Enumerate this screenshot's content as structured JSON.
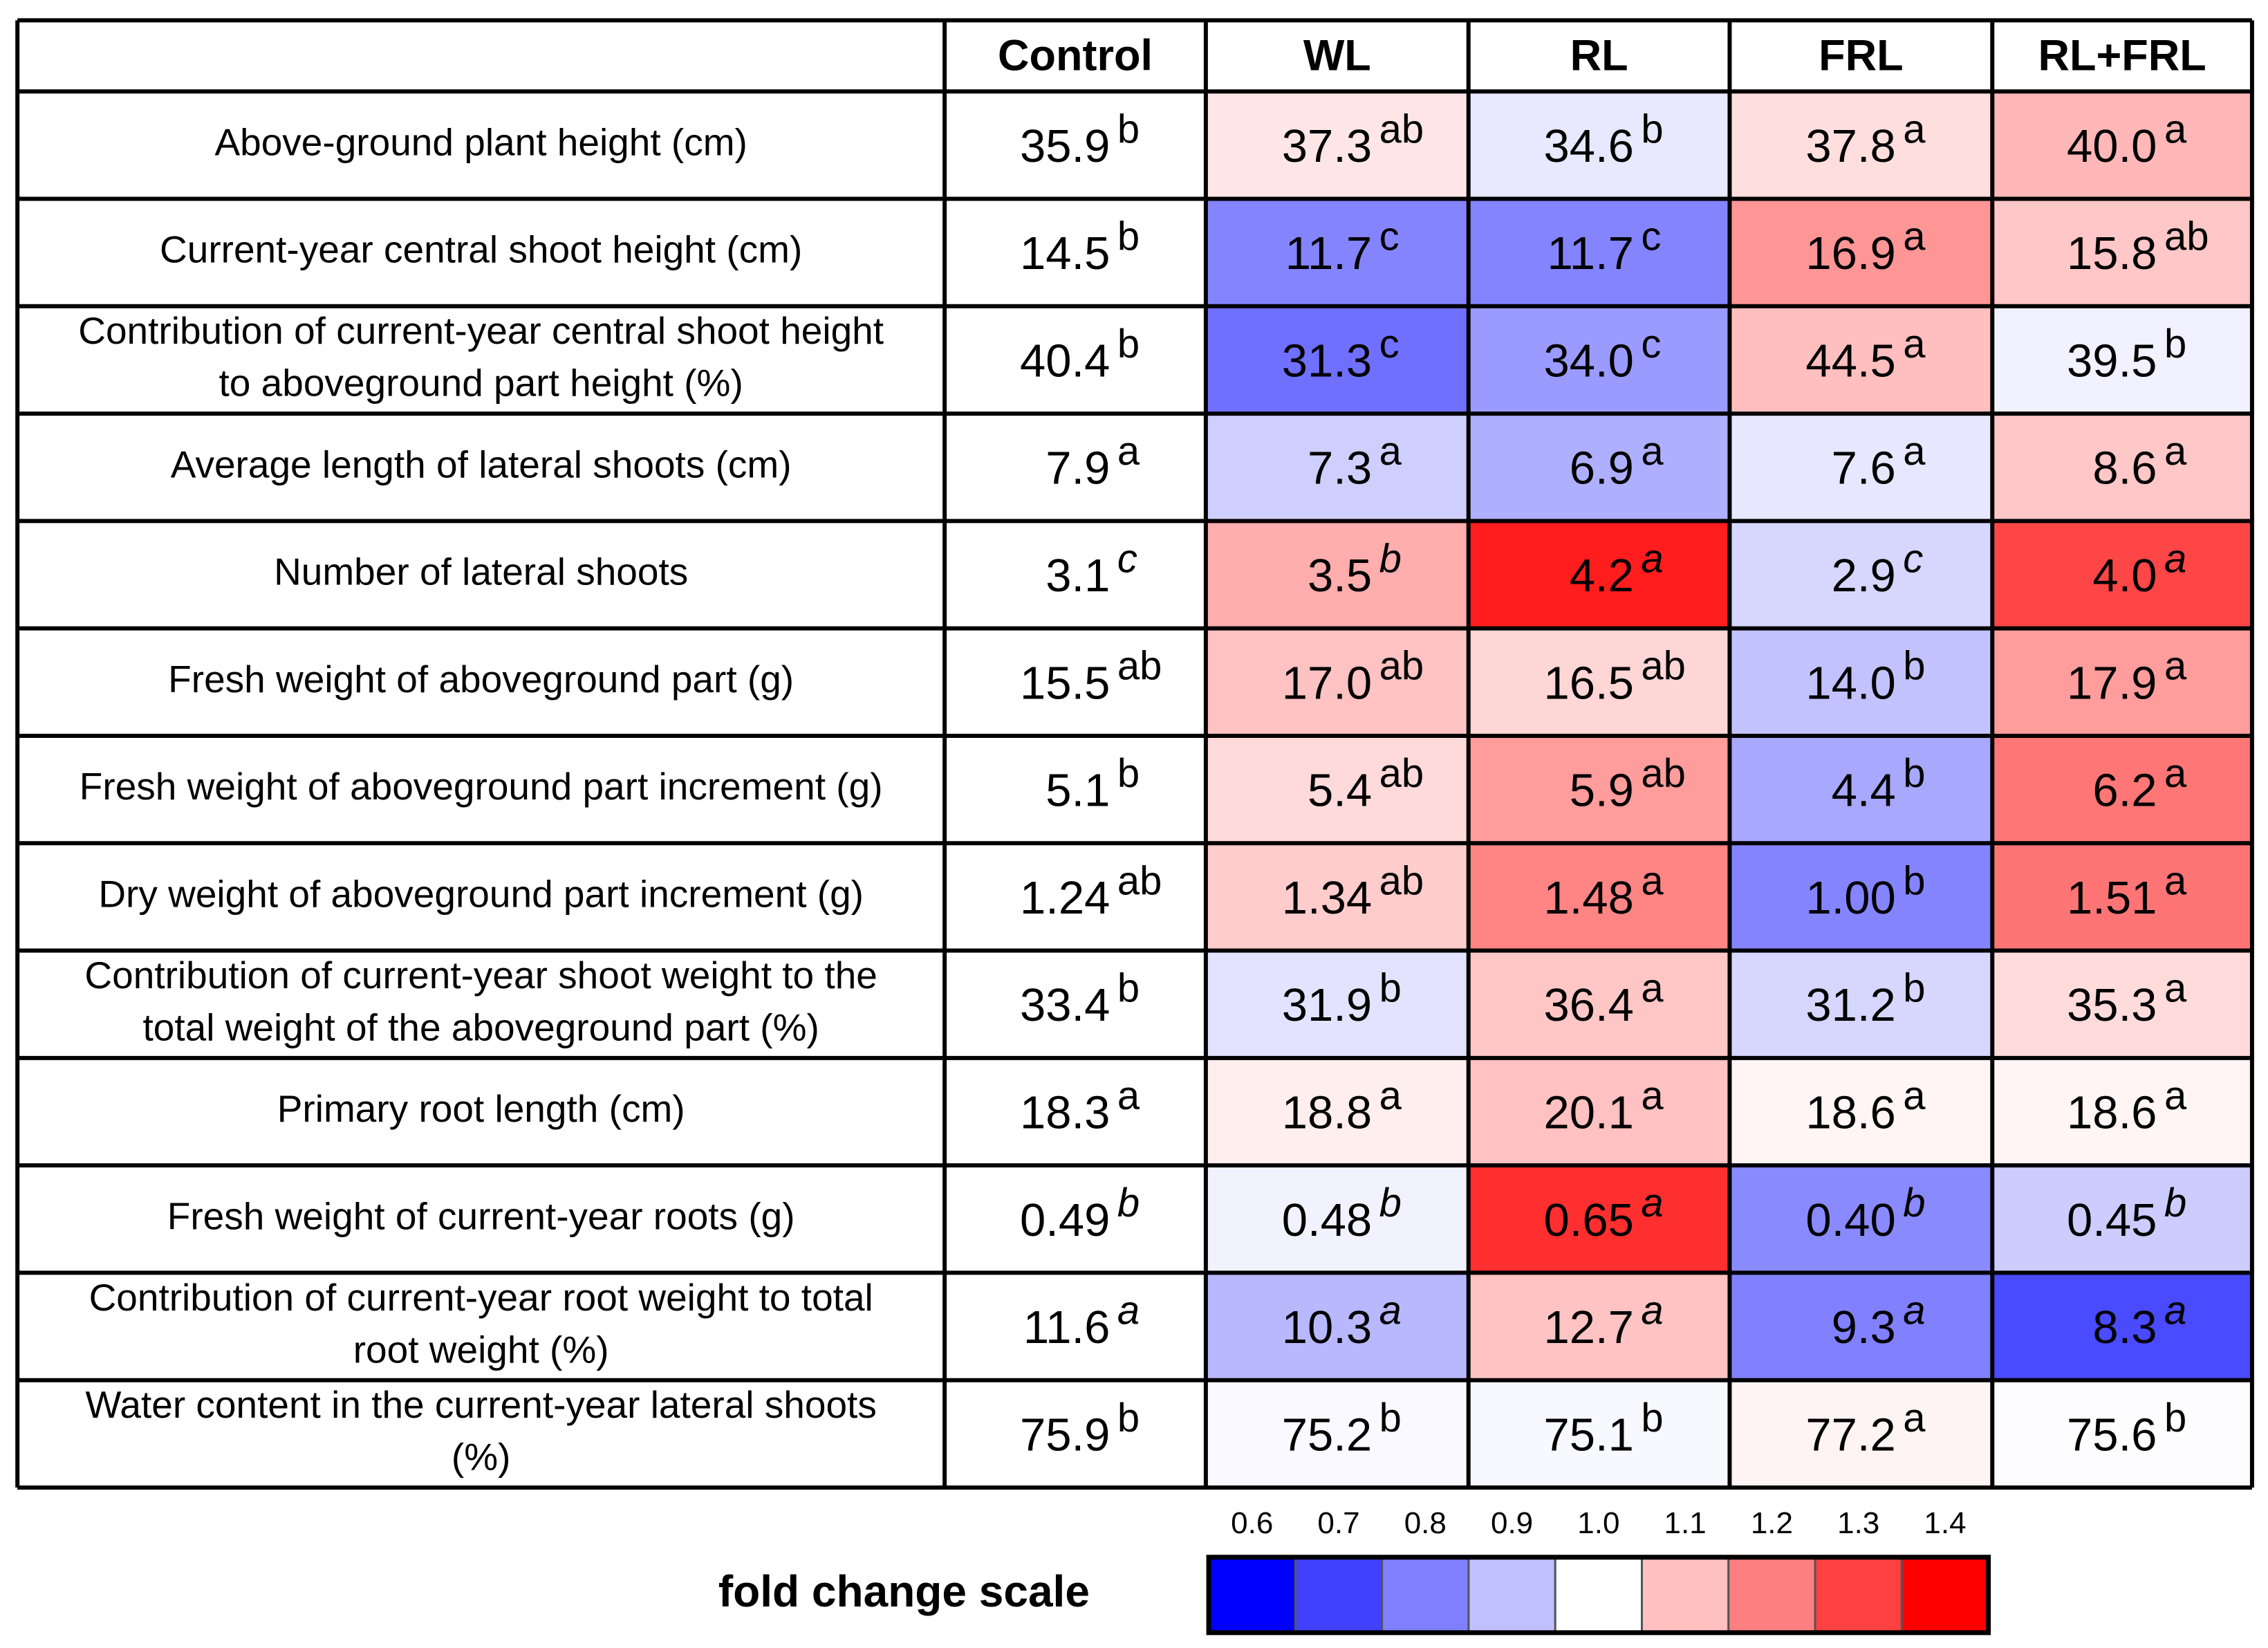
{
  "table": {
    "columns": [
      "Control",
      "WL",
      "RL",
      "FRL",
      "RL+FRL"
    ],
    "rows": [
      {
        "label": [
          "Above-ground plant height (cm)"
        ],
        "values": [
          "35.9",
          "37.3",
          "34.6",
          "37.8",
          "40.0"
        ],
        "letters": [
          "b",
          "ab",
          "b",
          "a",
          "a"
        ],
        "letter_style": "normal"
      },
      {
        "label": [
          "Current-year central shoot height (cm)"
        ],
        "values": [
          "14.5",
          "11.7",
          "11.7",
          "16.9",
          "15.8"
        ],
        "letters": [
          "b",
          "c",
          "c",
          "a",
          "ab"
        ],
        "letter_style": "normal"
      },
      {
        "label": [
          "Contribution of current-year central shoot height",
          "to aboveground part height (%)"
        ],
        "values": [
          "40.4",
          "31.3",
          "34.0",
          "44.5",
          "39.5"
        ],
        "letters": [
          "b",
          "c",
          "c",
          "a",
          "b"
        ],
        "letter_style": "normal"
      },
      {
        "label": [
          "Average length of lateral shoots (cm)"
        ],
        "values": [
          "7.9",
          "7.3",
          "6.9",
          "7.6",
          "8.6"
        ],
        "letters": [
          "a",
          "a",
          "a",
          "a",
          "a"
        ],
        "letter_style": "normal"
      },
      {
        "label": [
          "Number of lateral shoots"
        ],
        "values": [
          "3.1",
          "3.5",
          "4.2",
          "2.9",
          "4.0"
        ],
        "letters": [
          "c",
          "b",
          "a",
          "c",
          "a"
        ],
        "letter_style": "italic"
      },
      {
        "label": [
          "Fresh weight of aboveground part (g)"
        ],
        "values": [
          "15.5",
          "17.0",
          "16.5",
          "14.0",
          "17.9"
        ],
        "letters": [
          "ab",
          "ab",
          "ab",
          "b",
          "a"
        ],
        "letter_style": "normal"
      },
      {
        "label": [
          "Fresh weight of aboveground part increment (g)"
        ],
        "values": [
          "5.1",
          "5.4",
          "5.9",
          "4.4",
          "6.2"
        ],
        "letters": [
          "b",
          "ab",
          "ab",
          "b",
          "a"
        ],
        "letter_style": "normal"
      },
      {
        "label": [
          "Dry weight of aboveground part increment (g)"
        ],
        "values": [
          "1.24",
          "1.34",
          "1.48",
          "1.00",
          "1.51"
        ],
        "letters": [
          "ab",
          "ab",
          "a",
          "b",
          "a"
        ],
        "letter_style": "normal"
      },
      {
        "label": [
          "Contribution of current-year shoot weight to the",
          "total weight of the aboveground part (%)"
        ],
        "values": [
          "33.4",
          "31.9",
          "36.4",
          "31.2",
          "35.3"
        ],
        "letters": [
          "b",
          "b",
          "a",
          "b",
          "a"
        ],
        "letter_style": "normal"
      },
      {
        "label": [
          "Primary root length (cm)"
        ],
        "values": [
          "18.3",
          "18.8",
          "20.1",
          "18.6",
          "18.6"
        ],
        "letters": [
          "a",
          "a",
          "a",
          "a",
          "a"
        ],
        "letter_style": "normal"
      },
      {
        "label": [
          "Fresh weight of current-year roots (g)"
        ],
        "values": [
          "0.49",
          "0.48",
          "0.65",
          "0.40",
          "0.45"
        ],
        "letters": [
          "b",
          "b",
          "a",
          "b",
          "b"
        ],
        "letter_style": "italic"
      },
      {
        "label": [
          "Contribution of current-year root weight to total",
          "root weight (%)"
        ],
        "values": [
          "11.6",
          "10.3",
          "12.7",
          "9.3",
          "8.3"
        ],
        "letters": [
          "a",
          "a",
          "a",
          "a",
          "a"
        ],
        "letter_style": "italic"
      },
      {
        "label": [
          "Water content in the current-year lateral shoots",
          "(%)"
        ],
        "values": [
          "75.9",
          "75.2",
          "75.1",
          "77.2",
          "75.6"
        ],
        "letters": [
          "b",
          "b",
          "b",
          "a",
          "b"
        ],
        "letter_style": "normal"
      }
    ]
  },
  "scale": {
    "title": "fold change scale",
    "ticks": [
      0.6,
      0.7,
      0.8,
      0.9,
      {
        "value": 1,
        "label": "1.0"
      },
      1.1,
      1.2,
      1.3,
      1.4
    ],
    "colors": [
      "#0000ff",
      "#4040ff",
      "#8080ff",
      "#c0c0ff",
      "#ffffff",
      "#ffc0c0",
      "#ff8080",
      "#ff4040",
      "#ff0000"
    ]
  }
}
